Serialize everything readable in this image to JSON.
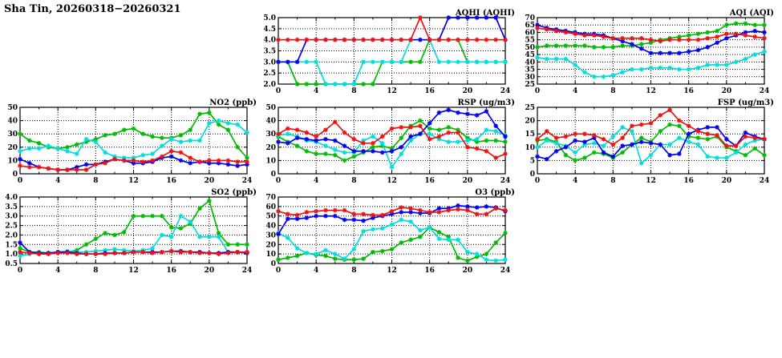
{
  "page_title": "Sha Tin, 20260318−20260321",
  "colors": {
    "blue": "#0000ee",
    "red": "#ee1111",
    "green": "#00bb00",
    "cyan": "#00dddd",
    "axis": "#000000"
  },
  "chart_data": [
    {
      "id": "aqhi",
      "type": "line",
      "title": "AQHI (AQHI)",
      "xlim": [
        0,
        24
      ],
      "xticks": [
        0,
        4,
        8,
        12,
        16,
        20,
        24
      ],
      "x_start": 0,
      "x_step": 1,
      "ylim": [
        2.0,
        5.0
      ],
      "ytick_step": 0.5,
      "ytick_decimals": 1,
      "grid": true,
      "legend": "none",
      "series": [
        {
          "name": "green",
          "values": [
            3,
            3,
            2,
            2,
            2,
            2,
            2,
            2,
            2,
            2,
            2,
            3,
            3,
            3,
            3,
            3,
            4,
            4,
            4,
            4,
            3,
            3,
            3,
            3,
            3
          ]
        },
        {
          "name": "cyan",
          "values": [
            3,
            3,
            3,
            3,
            3,
            2,
            2,
            2,
            2,
            3,
            3,
            3,
            3,
            3,
            4,
            4,
            4,
            3,
            3,
            3,
            3,
            3,
            3,
            3,
            3
          ]
        },
        {
          "name": "blue",
          "values": [
            3,
            3,
            3,
            4,
            4,
            4,
            4,
            4,
            4,
            4,
            4,
            4,
            4,
            4,
            4,
            4,
            4,
            4,
            5,
            5,
            5,
            5,
            5,
            5,
            4
          ]
        },
        {
          "name": "red",
          "values": [
            4,
            4,
            4,
            4,
            4,
            4,
            4,
            4,
            4,
            4,
            4,
            4,
            4,
            4,
            4,
            5,
            4,
            4,
            4,
            4,
            4,
            4,
            4,
            4,
            4
          ]
        }
      ]
    },
    {
      "id": "aqi",
      "type": "line",
      "title": "AQI (AQI)",
      "xlim": [
        0,
        24
      ],
      "xticks": [
        0,
        4,
        8,
        12,
        16,
        20,
        24
      ],
      "x_start": 0,
      "x_step": 1,
      "ylim": [
        25,
        70
      ],
      "ytick_step": 5,
      "ytick_decimals": 0,
      "grid": true,
      "legend": "none",
      "series": [
        {
          "name": "green",
          "values": [
            50,
            51,
            51,
            51,
            51,
            51,
            50,
            50,
            50,
            51,
            51,
            52,
            53,
            55,
            56,
            57,
            58,
            59,
            60,
            61,
            65,
            66,
            66,
            65,
            65
          ]
        },
        {
          "name": "cyan",
          "values": [
            43,
            42,
            42,
            42,
            38,
            33,
            30,
            30,
            31,
            33,
            35,
            35,
            36,
            36,
            36,
            35,
            35,
            36,
            38,
            38,
            38,
            40,
            42,
            45,
            47
          ]
        },
        {
          "name": "blue",
          "values": [
            65,
            63,
            62,
            61,
            60,
            59,
            59,
            58,
            56,
            54,
            52,
            49,
            46,
            46,
            46,
            46,
            47,
            48,
            50,
            53,
            56,
            58,
            60,
            61,
            60
          ]
        },
        {
          "name": "red",
          "values": [
            63,
            62,
            61,
            60,
            59,
            58,
            58,
            57,
            56,
            56,
            56,
            56,
            55,
            54,
            55,
            55,
            55,
            55,
            56,
            57,
            59,
            59,
            58,
            57,
            56
          ]
        }
      ]
    },
    {
      "id": "no2",
      "type": "line",
      "title": "NO2 (ppb)",
      "xlim": [
        0,
        24
      ],
      "xticks": [
        0,
        4,
        8,
        12,
        16,
        20,
        24
      ],
      "x_start": 0,
      "x_step": 1,
      "ylim": [
        0,
        50
      ],
      "ytick_step": 10,
      "ytick_decimals": 0,
      "grid": true,
      "legend": "none",
      "series": [
        {
          "name": "green",
          "values": [
            30,
            25,
            23,
            20,
            19,
            20,
            22,
            24,
            26,
            29,
            30,
            33,
            34,
            30,
            28,
            27,
            27,
            29,
            33,
            45,
            46,
            37,
            33,
            20,
            12
          ]
        },
        {
          "name": "cyan",
          "values": [
            17,
            19,
            19,
            21,
            19,
            17,
            15,
            26,
            24,
            16,
            13,
            12,
            12,
            14,
            15,
            21,
            26,
            24,
            25,
            25,
            38,
            40,
            38,
            37,
            31
          ]
        },
        {
          "name": "blue",
          "values": [
            11,
            8,
            5,
            4,
            3,
            3,
            5,
            7,
            7,
            9,
            11,
            10,
            8,
            8,
            9,
            12,
            13,
            10,
            8,
            9,
            8,
            8,
            7,
            6,
            7
          ]
        },
        {
          "name": "red",
          "values": [
            6,
            5,
            5,
            4,
            3,
            3,
            3,
            3,
            7,
            8,
            11,
            10,
            10,
            9,
            10,
            13,
            17,
            16,
            12,
            9,
            10,
            10,
            10,
            9,
            9
          ]
        }
      ]
    },
    {
      "id": "rsp",
      "type": "line",
      "title": "RSP (ug/m3)",
      "xlim": [
        0,
        24
      ],
      "xticks": [
        0,
        4,
        8,
        12,
        16,
        20,
        24
      ],
      "x_start": 0,
      "x_step": 1,
      "ylim": [
        0,
        50
      ],
      "ytick_step": 10,
      "ytick_decimals": 0,
      "grid": true,
      "legend": "none",
      "series": [
        {
          "name": "green",
          "values": [
            28,
            24,
            21,
            17,
            15,
            15,
            14,
            10,
            13,
            16,
            20,
            21,
            19,
            27,
            36,
            40,
            34,
            33,
            35,
            33,
            27,
            24,
            25,
            25,
            24
          ]
        },
        {
          "name": "cyan",
          "values": [
            29,
            30,
            28,
            25,
            24,
            21,
            18,
            16,
            16,
            25,
            28,
            23,
            5,
            15,
            25,
            30,
            30,
            26,
            24,
            24,
            25,
            26,
            33,
            32,
            29
          ]
        },
        {
          "name": "blue",
          "values": [
            24,
            23,
            27,
            26,
            25,
            26,
            25,
            21,
            17,
            17,
            17,
            16,
            17,
            20,
            28,
            30,
            38,
            46,
            48,
            46,
            45,
            44,
            47,
            36,
            28
          ]
        },
        {
          "name": "red",
          "values": [
            30,
            34,
            33,
            31,
            28,
            33,
            39,
            31,
            26,
            23,
            23,
            28,
            34,
            35,
            35,
            36,
            26,
            28,
            31,
            31,
            20,
            19,
            17,
            12,
            15
          ]
        }
      ]
    },
    {
      "id": "fsp",
      "type": "line",
      "title": "FSP (ug/m3)",
      "xlim": [
        0,
        24
      ],
      "xticks": [
        0,
        4,
        8,
        12,
        16,
        20,
        24
      ],
      "x_start": 0,
      "x_step": 1,
      "ylim": [
        0,
        25
      ],
      "ytick_step": 5,
      "ytick_decimals": 0,
      "grid": true,
      "legend": "none",
      "series": [
        {
          "name": "green",
          "values": [
            12.5,
            13,
            12,
            7,
            5,
            6,
            8,
            7.5,
            6,
            8,
            11,
            13.5,
            12,
            16,
            18.5,
            18,
            14,
            13.5,
            13,
            14,
            10,
            8.5,
            7,
            9.5,
            7
          ]
        },
        {
          "name": "cyan",
          "values": [
            10,
            12.5,
            11.5,
            10.5,
            8,
            11,
            11.5,
            10.5,
            14,
            17.5,
            16,
            4,
            7,
            11,
            11,
            13.5,
            12,
            11,
            6.5,
            6,
            6,
            8,
            11,
            12.5,
            13
          ]
        },
        {
          "name": "blue",
          "values": [
            6.5,
            5.5,
            8.5,
            10,
            12.5,
            12,
            13.5,
            8,
            6.5,
            10.5,
            11,
            12,
            11.5,
            11,
            7,
            7.5,
            15,
            16.5,
            17.5,
            17.5,
            13,
            10.5,
            15.5,
            14,
            13
          ]
        },
        {
          "name": "red",
          "values": [
            13,
            16,
            13.5,
            14,
            15,
            15,
            14.5,
            13,
            11,
            13.5,
            18,
            18.5,
            19,
            22,
            24,
            20,
            18,
            16,
            15,
            14.5,
            10.5,
            10.5,
            14,
            13.5,
            13
          ]
        }
      ]
    },
    {
      "id": "so2",
      "type": "line",
      "title": "SO2 (ppb)",
      "xlim": [
        0,
        24
      ],
      "xticks": [
        0,
        4,
        8,
        12,
        16,
        20,
        24
      ],
      "x_start": 0,
      "x_step": 1,
      "ylim": [
        0.5,
        4.0
      ],
      "ytick_step": 0.5,
      "ytick_decimals": 1,
      "grid": true,
      "legend": "none",
      "series": [
        {
          "name": "green",
          "values": [
            1.3,
            1.1,
            1.1,
            1.05,
            1.1,
            1.1,
            1.2,
            1.5,
            1.8,
            2.1,
            2.0,
            2.15,
            3.0,
            3.0,
            3.0,
            3.0,
            2.4,
            2.35,
            2.6,
            3.4,
            3.8,
            2.1,
            1.5,
            1.5,
            1.5
          ]
        },
        {
          "name": "cyan",
          "values": [
            0.9,
            1.0,
            1.05,
            1.05,
            1.1,
            1.15,
            1.1,
            1.1,
            1.15,
            1.2,
            1.25,
            1.2,
            1.15,
            1.2,
            1.3,
            2.0,
            1.9,
            3.0,
            2.7,
            1.9,
            1.9,
            1.9,
            1.1,
            1.1,
            1.1
          ]
        },
        {
          "name": "blue",
          "values": [
            1.6,
            1.1,
            1.05,
            1.05,
            1.1,
            1.1,
            1.05,
            1.0,
            1.0,
            1.05,
            1.05,
            1.05,
            1.1,
            1.1,
            1.1,
            1.1,
            1.15,
            1.15,
            1.1,
            1.1,
            1.05,
            1.05,
            1.1,
            1.1,
            1.05
          ]
        },
        {
          "name": "red",
          "values": [
            1.1,
            1.05,
            1.0,
            1.0,
            1.05,
            1.05,
            1.0,
            1.0,
            1.0,
            1.0,
            1.05,
            1.05,
            1.1,
            1.1,
            1.05,
            1.1,
            1.15,
            1.1,
            1.1,
            1.05,
            1.05,
            1.0,
            1.05,
            1.1,
            1.1
          ]
        }
      ]
    },
    {
      "id": "o3",
      "type": "line",
      "title": "O3 (ppb)",
      "xlim": [
        0,
        24
      ],
      "xticks": [
        0,
        4,
        8,
        12,
        16,
        20,
        24
      ],
      "x_start": 0,
      "x_step": 1,
      "ylim": [
        0,
        70
      ],
      "ytick_step": 10,
      "ytick_decimals": 0,
      "grid": true,
      "legend": "none",
      "series": [
        {
          "name": "green",
          "values": [
            4,
            6,
            8,
            11,
            9,
            8,
            5,
            4,
            4,
            5,
            12,
            13,
            15,
            22,
            25,
            28,
            38,
            33,
            28,
            6,
            3,
            7,
            10,
            22,
            32
          ]
        },
        {
          "name": "cyan",
          "values": [
            32,
            27,
            16,
            11,
            10,
            14,
            10,
            5,
            15,
            34,
            36,
            37,
            41,
            46,
            44,
            35,
            38,
            26,
            25,
            25,
            12,
            10,
            4,
            3,
            4
          ]
        },
        {
          "name": "blue",
          "values": [
            31,
            47,
            47,
            48,
            50,
            50,
            50,
            46,
            46,
            45,
            48,
            50,
            52,
            54,
            54,
            53,
            53,
            58,
            58,
            61,
            60,
            59,
            60,
            59,
            55
          ]
        },
        {
          "name": "red",
          "values": [
            55,
            52,
            51,
            54,
            55,
            56,
            56,
            56,
            52,
            52,
            51,
            51,
            55,
            59,
            58,
            56,
            54,
            54,
            56,
            57,
            56,
            52,
            52,
            58,
            56
          ]
        }
      ]
    }
  ]
}
